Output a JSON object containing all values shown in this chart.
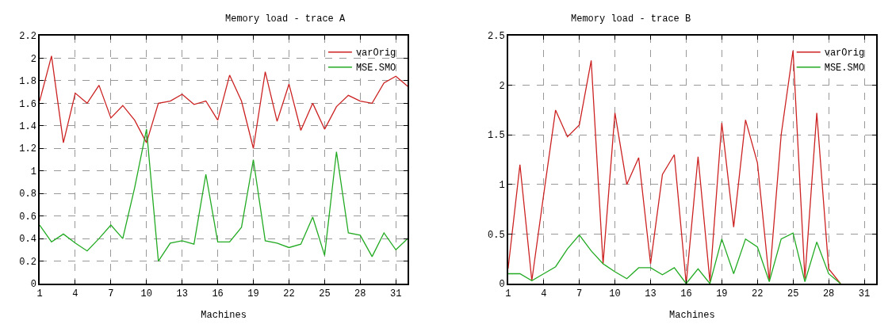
{
  "chart_data": [
    {
      "type": "line",
      "title": "Memory load - trace A",
      "xlabel": "Machines",
      "x": [
        1,
        2,
        3,
        4,
        5,
        6,
        7,
        8,
        9,
        10,
        11,
        12,
        13,
        14,
        15,
        16,
        17,
        18,
        19,
        20,
        21,
        22,
        23,
        24,
        25,
        26,
        27,
        28,
        29,
        30,
        31,
        32
      ],
      "series": [
        {
          "name": "varOrig",
          "color": "#cc2222",
          "values": [
            1.62,
            2.02,
            1.25,
            1.69,
            1.6,
            1.76,
            1.47,
            1.58,
            1.45,
            1.25,
            1.6,
            1.62,
            1.68,
            1.59,
            1.62,
            1.45,
            1.85,
            1.62,
            1.2,
            1.88,
            1.44,
            1.77,
            1.36,
            1.6,
            1.37,
            1.57,
            1.67,
            1.62,
            1.6,
            1.78,
            1.84,
            1.75
          ]
        },
        {
          "name": "MSE.SMO",
          "color": "#22aa22",
          "values": [
            0.52,
            0.37,
            0.44,
            0.36,
            0.29,
            0.4,
            0.52,
            0.4,
            0.85,
            1.37,
            0.2,
            0.36,
            0.38,
            0.35,
            0.97,
            0.37,
            0.37,
            0.5,
            1.1,
            0.38,
            0.36,
            0.32,
            0.35,
            0.59,
            0.25,
            1.17,
            0.45,
            0.43,
            0.24,
            0.45,
            0.3,
            0.4
          ]
        }
      ],
      "xlim": [
        1,
        32
      ],
      "xticks": [
        1,
        4,
        7,
        10,
        13,
        16,
        19,
        22,
        25,
        28,
        31
      ],
      "ylim": [
        0,
        2.2
      ],
      "yticks": [
        0,
        0.2,
        0.4,
        0.6,
        0.8,
        1,
        1.2,
        1.4,
        1.6,
        1.8,
        2,
        2.2
      ],
      "grid": true,
      "legend": "top right",
      "line_style": "solid",
      "marker": "none"
    },
    {
      "type": "line",
      "title": "Memory load - trace B",
      "xlabel": "Machines",
      "x": [
        1,
        2,
        3,
        4,
        5,
        6,
        7,
        8,
        9,
        10,
        11,
        12,
        13,
        14,
        15,
        16,
        17,
        18,
        19,
        20,
        21,
        22,
        23,
        24,
        25,
        26,
        27,
        28,
        29
      ],
      "series": [
        {
          "name": "varOrig",
          "color": "#cc2222",
          "values": [
            0.15,
            1.2,
            0.03,
            0.9,
            1.75,
            1.48,
            1.6,
            2.25,
            0.2,
            1.72,
            1.0,
            1.27,
            0.2,
            1.1,
            1.3,
            0.0,
            1.28,
            0.02,
            1.62,
            0.57,
            1.65,
            1.22,
            0.03,
            1.5,
            2.35,
            0.05,
            1.72,
            0.15,
            0.0
          ]
        },
        {
          "name": "MSE.SMO",
          "color": "#22aa22",
          "values": [
            0.1,
            0.1,
            0.03,
            0.1,
            0.17,
            0.35,
            0.49,
            0.33,
            0.2,
            0.12,
            0.05,
            0.16,
            0.16,
            0.09,
            0.16,
            0.0,
            0.15,
            0.0,
            0.45,
            0.1,
            0.45,
            0.37,
            0.02,
            0.45,
            0.51,
            0.02,
            0.42,
            0.1,
            0.0
          ]
        }
      ],
      "xlim": [
        1,
        32
      ],
      "xticks": [
        1,
        4,
        7,
        10,
        13,
        16,
        19,
        22,
        25,
        28,
        31
      ],
      "ylim": [
        0,
        2.5
      ],
      "yticks": [
        0,
        0.5,
        1,
        1.5,
        2,
        2.5
      ],
      "grid": true,
      "legend": "top right",
      "line_style": "solid",
      "marker": "none"
    }
  ]
}
